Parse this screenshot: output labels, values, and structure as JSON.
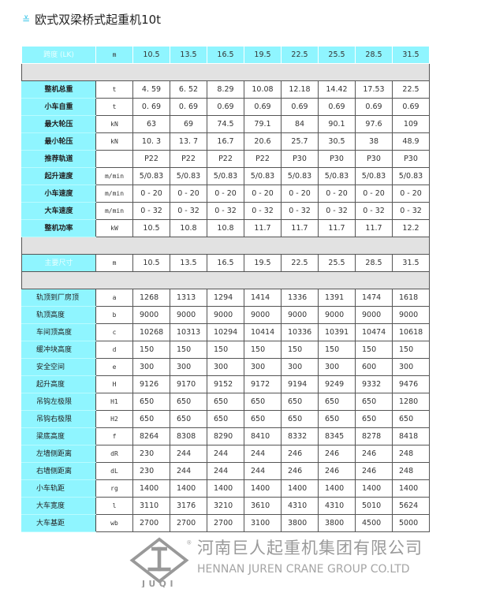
{
  "title": "欧式双梁桥式起重机10t",
  "spans": [
    "10.5",
    "13.5",
    "16.5",
    "19.5",
    "22.5",
    "25.5",
    "28.5",
    "31.5"
  ],
  "header1": {
    "label": "跨度 (LK)",
    "unit": "m"
  },
  "performance": [
    {
      "label": "整机总重",
      "unit": "t",
      "values": [
        "4. 59",
        "6. 52",
        "8.29",
        "10.08",
        "12.18",
        "14.42",
        "17.53",
        "22.5"
      ]
    },
    {
      "label": "小车自重",
      "unit": "t",
      "values": [
        "0. 69",
        "0. 69",
        "0.69",
        "0.69",
        "0.69",
        "0.69",
        "0.69",
        "0.69"
      ]
    },
    {
      "label": "最大轮压",
      "unit": "kN",
      "values": [
        "63",
        "69",
        "74.5",
        "79.1",
        "84",
        "90.1",
        "97.6",
        "109"
      ]
    },
    {
      "label": "最小轮压",
      "unit": "kN",
      "values": [
        "10. 3",
        "13. 7",
        "16.7",
        "20.6",
        "25.7",
        "30.5",
        "38",
        "48.9"
      ]
    },
    {
      "label": "推荐轨道",
      "unit": "",
      "values": [
        "P22",
        "P22",
        "P22",
        "P22",
        "P30",
        "P30",
        "P30",
        "P30"
      ]
    },
    {
      "label": "起升速度",
      "unit": "m/min",
      "values": [
        "5/0.83",
        "5/0.83",
        "5/0.83",
        "5/0.83",
        "5/0.83",
        "5/0.83",
        "5/0.83",
        "5/0.83"
      ]
    },
    {
      "label": "小车速度",
      "unit": "m/min",
      "values": [
        "0 - 20",
        "0 - 20",
        "0 - 20",
        "0 - 20",
        "0 - 20",
        "0 - 20",
        "0 - 20",
        "0 - 20"
      ]
    },
    {
      "label": "大车速度",
      "unit": "m/min",
      "values": [
        "0 - 32",
        "0 - 32",
        "0 - 32",
        "0 - 32",
        "0 - 32",
        "0 - 32",
        "0 - 32",
        "0 - 32"
      ]
    },
    {
      "label": "整机功率",
      "unit": "kW",
      "values": [
        "10.5",
        "10.8",
        "10.8",
        "11.7",
        "11.7",
        "11.7",
        "11.7",
        "12.2"
      ]
    }
  ],
  "header2": {
    "label": "主要尺寸",
    "unit": "m"
  },
  "dimensions": [
    {
      "label": "轨顶到厂房顶",
      "unit": "a",
      "values": [
        "1268",
        "1313",
        "1294",
        "1414",
        "1336",
        "1391",
        "1474",
        "1618"
      ]
    },
    {
      "label": "轨顶高度",
      "unit": "b",
      "values": [
        "9000",
        "9000",
        "9000",
        "9000",
        "9000",
        "9000",
        "9000",
        "9000"
      ]
    },
    {
      "label": "车间顶高度",
      "unit": "c",
      "values": [
        "10268",
        "10313",
        "10294",
        "10414",
        "10336",
        "10391",
        "10474",
        "10618"
      ]
    },
    {
      "label": "缓冲块高度",
      "unit": "d",
      "values": [
        "150",
        "150",
        "150",
        "150",
        "150",
        "150",
        "150",
        "150"
      ]
    },
    {
      "label": "安全空间",
      "unit": "e",
      "values": [
        "300",
        "300",
        "300",
        "300",
        "300",
        "300",
        "600",
        "300"
      ]
    },
    {
      "label": "起升高度",
      "unit": "H",
      "values": [
        "9126",
        "9170",
        "9152",
        "9172",
        "9194",
        "9249",
        "9332",
        "9476"
      ]
    },
    {
      "label": "吊钩左极限",
      "unit": "H1",
      "values": [
        "650",
        "650",
        "650",
        "650",
        "650",
        "650",
        "650",
        "1280"
      ]
    },
    {
      "label": "吊钩右极限",
      "unit": "H2",
      "values": [
        "650",
        "650",
        "650",
        "650",
        "650",
        "650",
        "650",
        "650"
      ]
    },
    {
      "label": "梁底高度",
      "unit": "f",
      "values": [
        "8264",
        "8308",
        "8290",
        "8410",
        "8332",
        "8345",
        "8278",
        "8418"
      ]
    },
    {
      "label": "左墙侧距离",
      "unit": "dR",
      "values": [
        "230",
        "244",
        "244",
        "244",
        "246",
        "246",
        "246",
        "248"
      ]
    },
    {
      "label": "右墙侧距离",
      "unit": "dL",
      "values": [
        "230",
        "244",
        "244",
        "244",
        "246",
        "246",
        "246",
        "248"
      ]
    },
    {
      "label": "小车轨距",
      "unit": "rg",
      "values": [
        "1400",
        "1400",
        "1400",
        "1400",
        "1400",
        "1400",
        "1400",
        "1400"
      ]
    },
    {
      "label": "大车宽度",
      "unit": "l",
      "values": [
        "3110",
        "3176",
        "3210",
        "3610",
        "4310",
        "4310",
        "5010",
        "5624"
      ]
    },
    {
      "label": "大车基距",
      "unit": "wb",
      "values": [
        "2700",
        "2700",
        "2700",
        "3100",
        "3800",
        "3800",
        "4500",
        "5000"
      ]
    }
  ],
  "watermark": {
    "logo": "JUQI",
    "logo_chars": "巨 起",
    "company_cn": "河南巨人起重机集团有限公司",
    "company_en": "HENNAN JUREN CRANE GROUP CO.LTD"
  },
  "colors": {
    "accent": "#8ff5ff",
    "gray_band": "#e2e2e2",
    "chevron": "#3cc6e8"
  }
}
